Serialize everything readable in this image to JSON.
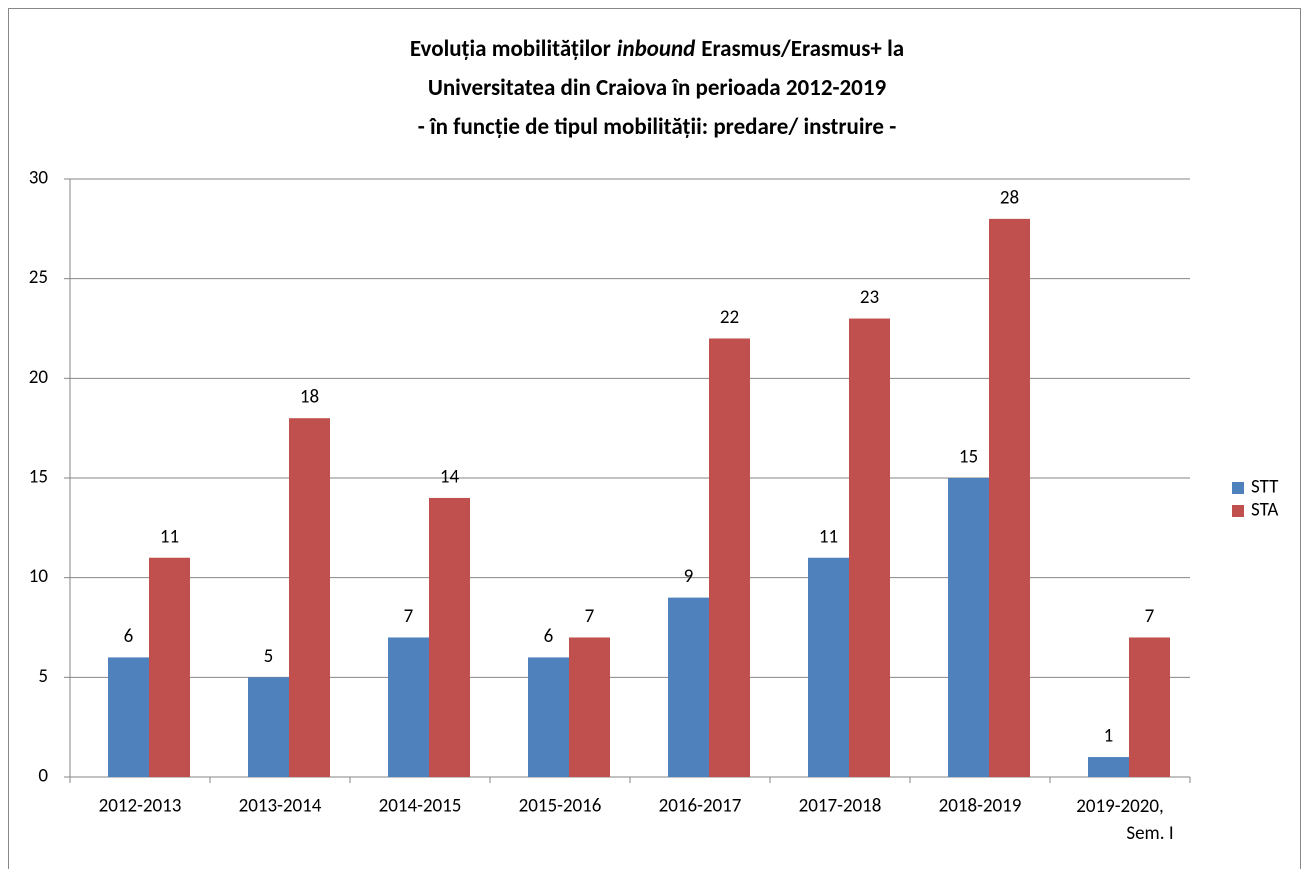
{
  "chart_data": {
    "type": "bar",
    "title": [
      [
        "Evoluția mobilităților",
        "inbound",
        "Erasmus/Erasmus+ la"
      ],
      [
        "Universitatea din Craiova în perioada 2012-2019"
      ],
      [
        "- în funcție de tipul mobilității: predare/ instruire -"
      ]
    ],
    "categories": [
      "2012-2013",
      "2013-2014",
      "2014-2015",
      "2015-2016",
      "2016-2017",
      "2017-2018",
      "2018-2019",
      "2019-2020, Sem. I"
    ],
    "series": [
      {
        "name": "STT",
        "color": "#4f81bd",
        "values": [
          6,
          5,
          7,
          6,
          9,
          11,
          15,
          1
        ]
      },
      {
        "name": "STA",
        "color": "#c0504d",
        "values": [
          11,
          18,
          14,
          7,
          22,
          23,
          28,
          7
        ]
      }
    ],
    "ylim": [
      0,
      30
    ],
    "yticks": [
      0,
      5,
      10,
      15,
      20,
      25,
      30
    ],
    "grid": true,
    "legend": "right"
  }
}
